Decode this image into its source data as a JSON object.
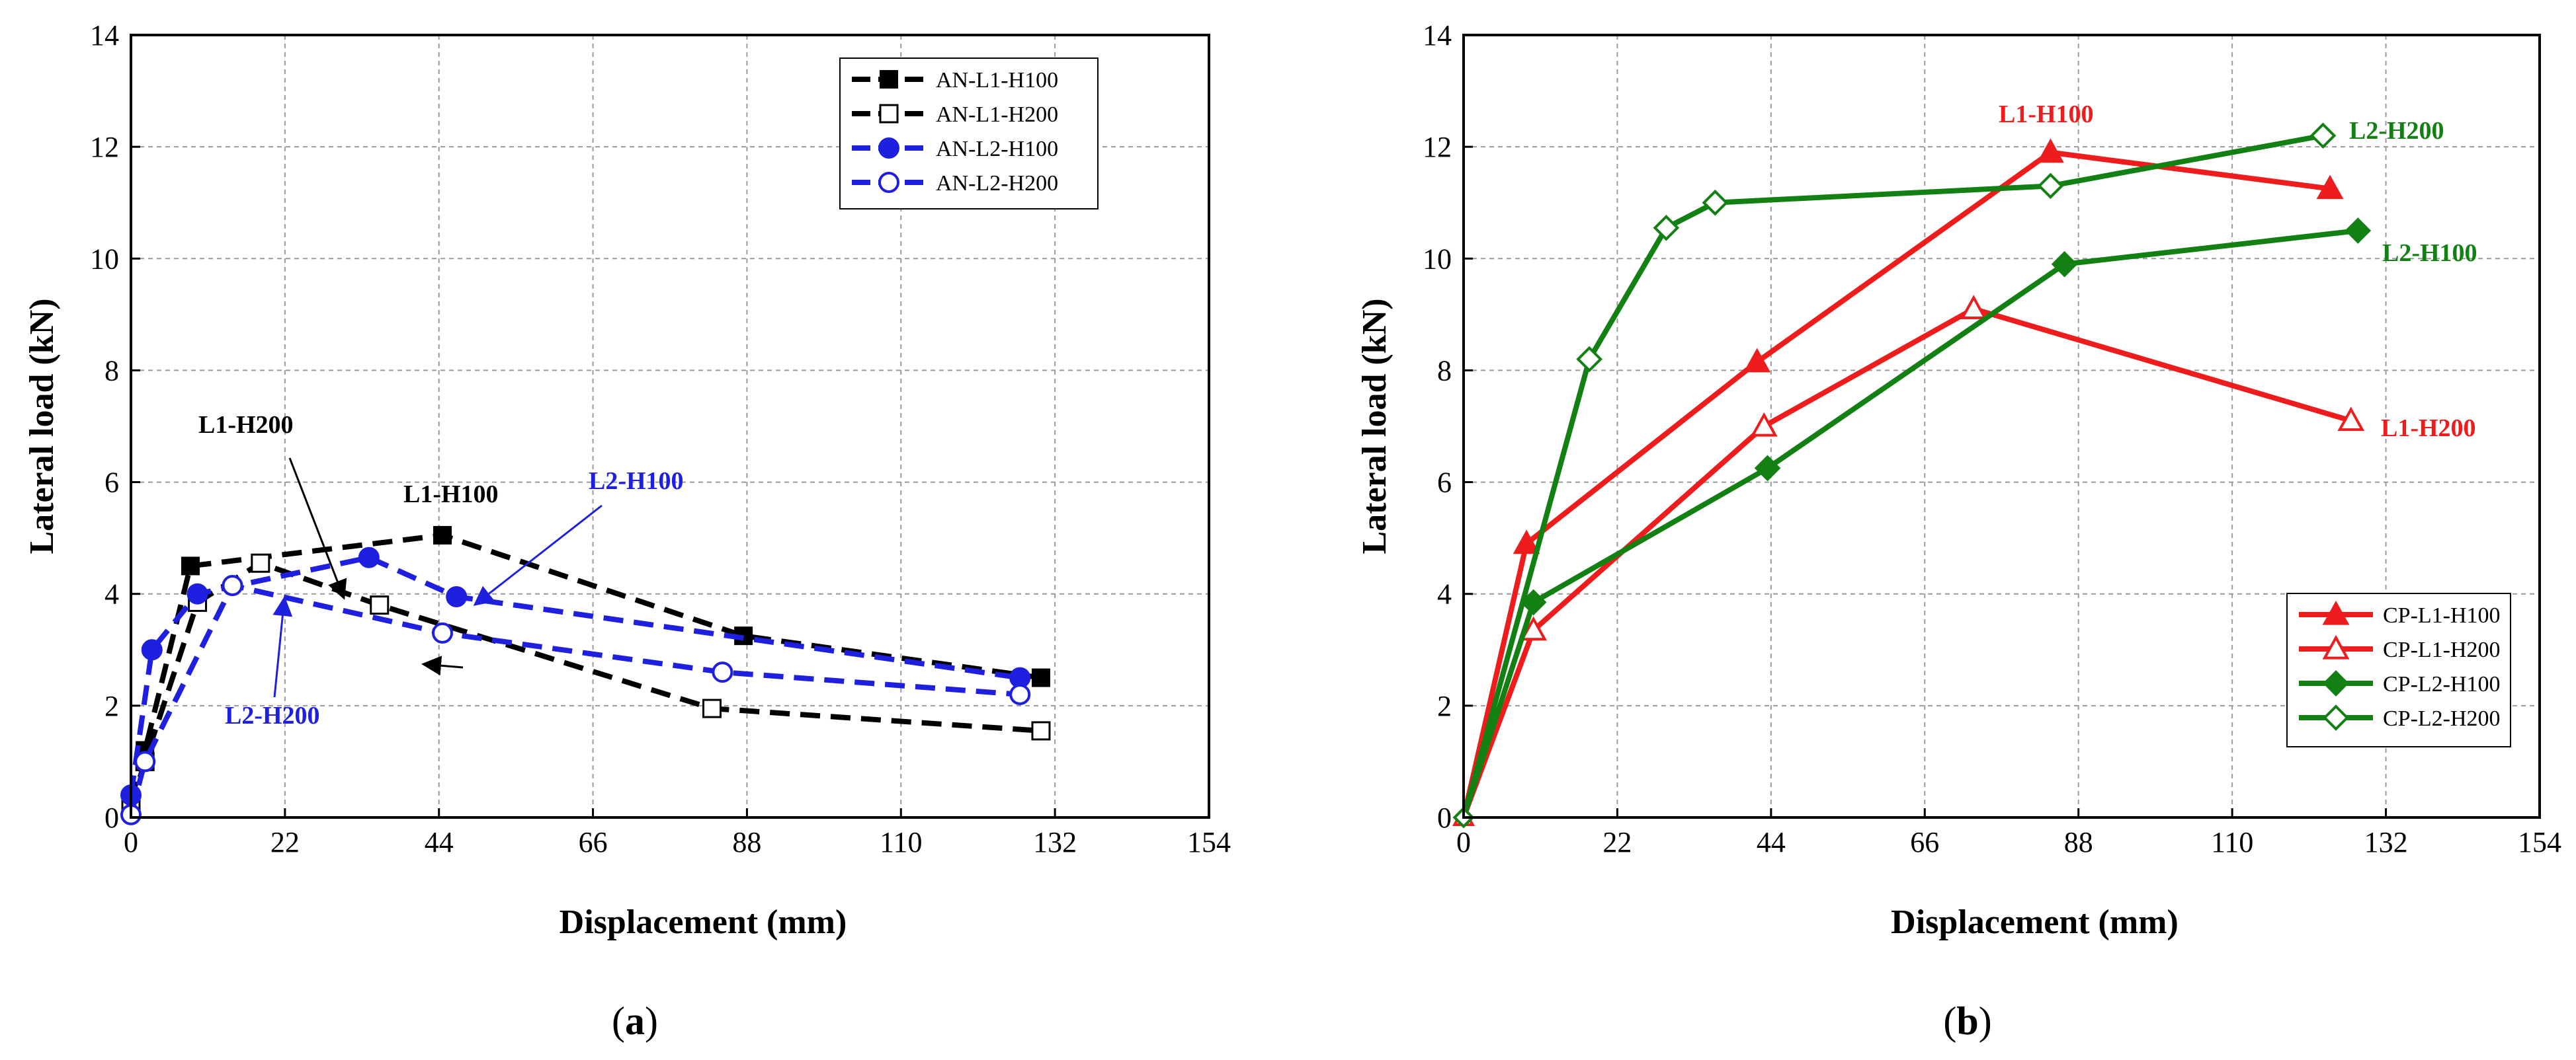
{
  "chart_data": [
    {
      "type": "line",
      "panel_label": "(a)",
      "panel_letter": "a",
      "xlabel": "Displacement (mm)",
      "ylabel": "Lateral load (kN)",
      "xlim": [
        0,
        154
      ],
      "ylim": [
        0,
        14
      ],
      "xticks": [
        0,
        22,
        44,
        66,
        88,
        110,
        132,
        154
      ],
      "yticks": [
        0,
        2,
        4,
        6,
        8,
        10,
        12,
        14
      ],
      "grid": true,
      "legend_position": "top-right",
      "series": [
        {
          "name": "AN-L1-H100",
          "color": "#000000",
          "marker": "square",
          "filled": true,
          "x": [
            0,
            2,
            8.5,
            44.5,
            87.5,
            130
          ],
          "y": [
            0.3,
            1.2,
            4.5,
            5.05,
            3.25,
            2.5
          ]
        },
        {
          "name": "AN-L1-H200",
          "color": "#000000",
          "marker": "square",
          "filled": false,
          "x": [
            0,
            2,
            9.5,
            18.5,
            35.5,
            83,
            130
          ],
          "y": [
            0.2,
            1.0,
            3.85,
            4.55,
            3.8,
            1.95,
            1.55
          ]
        },
        {
          "name": "AN-L2-H100",
          "color": "#1f1fe0",
          "marker": "circle",
          "filled": true,
          "x": [
            0,
            3,
            9.5,
            34,
            46.5,
            127
          ],
          "y": [
            0.4,
            3.0,
            4.0,
            4.65,
            3.95,
            2.5
          ]
        },
        {
          "name": "AN-L2-H200",
          "color": "#1f1fe0",
          "marker": "circle",
          "filled": false,
          "x": [
            0,
            2,
            14.5,
            44.5,
            84.5,
            127
          ],
          "y": [
            0.05,
            1.0,
            4.15,
            3.3,
            2.6,
            2.2
          ]
        }
      ],
      "annotations": [
        {
          "text": "L1-H200",
          "color": "#000000"
        },
        {
          "text": "L1-H100",
          "color": "#000000"
        },
        {
          "text": "L2-H100",
          "color": "#1f1fe0"
        },
        {
          "text": "L2-H200",
          "color": "#1f1fe0"
        }
      ]
    },
    {
      "type": "line",
      "panel_label": "(b)",
      "panel_letter": "b",
      "xlabel": "Displacement (mm)",
      "ylabel": "Lateral load (kN)",
      "xlim": [
        0,
        154
      ],
      "ylim": [
        0,
        14
      ],
      "xticks": [
        0,
        22,
        44,
        66,
        88,
        110,
        132,
        154
      ],
      "yticks": [
        0,
        2,
        4,
        6,
        8,
        10,
        12,
        14
      ],
      "grid": true,
      "legend_position": "bottom-right",
      "series": [
        {
          "name": "CP-L1-H100",
          "color": "#ee1c1c",
          "marker": "triangle",
          "filled": true,
          "x": [
            0,
            9,
            42,
            84,
            124
          ],
          "y": [
            0,
            4.9,
            8.15,
            11.9,
            11.25
          ]
        },
        {
          "name": "CP-L1-H200",
          "color": "#ee1c1c",
          "marker": "triangle",
          "filled": false,
          "x": [
            0,
            10,
            43,
            73,
            127
          ],
          "y": [
            0,
            3.35,
            7.0,
            9.1,
            7.1
          ]
        },
        {
          "name": "CP-L2-H100",
          "color": "#138013",
          "marker": "diamond",
          "filled": true,
          "x": [
            0,
            10,
            43.5,
            86,
            128
          ],
          "y": [
            0,
            3.85,
            6.25,
            9.9,
            10.5
          ]
        },
        {
          "name": "CP-L2-H200",
          "color": "#138013",
          "marker": "diamond",
          "filled": false,
          "x": [
            0,
            18,
            29,
            36,
            84,
            123
          ],
          "y": [
            0,
            8.2,
            10.55,
            11.0,
            11.3,
            12.2
          ]
        }
      ],
      "annotations": [
        {
          "text": "L1-H100",
          "color": "#ee1c1c"
        },
        {
          "text": "L2-H200",
          "color": "#138013"
        },
        {
          "text": "L2-H100",
          "color": "#138013"
        },
        {
          "text": "L1-H200",
          "color": "#ee1c1c"
        }
      ]
    }
  ]
}
